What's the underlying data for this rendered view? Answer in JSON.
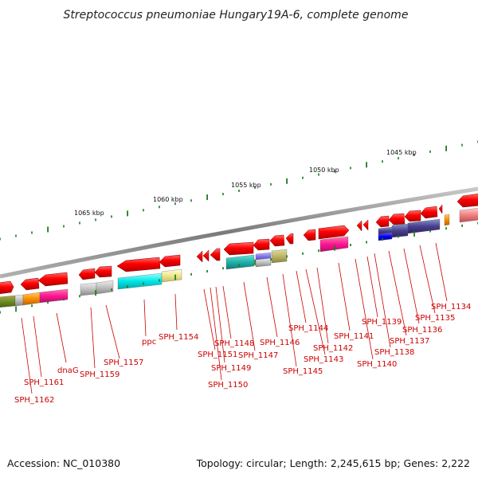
{
  "title": "Streptococcus pneumoniae Hungary19A-6, complete genome",
  "footer": {
    "accession": "Accession: NC_010380",
    "summary": "Topology: circular; Length: 2,245,615 bp; Genes: 2,222"
  },
  "colors": {
    "gene_red": "#ff0000",
    "backbone": "#8a8a8a",
    "tick_green": "#1e7a1e",
    "label_red": "#cc0000"
  },
  "scale_labels": [
    "1045 kbp",
    "1050 kbp",
    "1055 kbp",
    "1060 kbp",
    "1065 kbp"
  ],
  "gene_labels": [
    "SPH_1134",
    "SPH_1135",
    "SPH_1136",
    "SPH_1137",
    "SPH_1138",
    "SPH_1139",
    "SPH_1140",
    "SPH_1141",
    "SPH_1142",
    "SPH_1143",
    "SPH_1144",
    "SPH_1145",
    "SPH_1146",
    "SPH_1147",
    "SPH_1148",
    "SPH_1149",
    "SPH_1150",
    "SPH_1151",
    "SPH_1154",
    "ppc",
    "SPH_1157",
    "SPH_1159",
    "dnaG",
    "SPH_1161",
    "SPH_1162"
  ],
  "cog_colors": [
    "#ff0000",
    "#4b3f8f",
    "#0000ff",
    "#ff8c00",
    "#ff1493",
    "#00ced1",
    "#f0e68c",
    "#bdb76b",
    "#9370db",
    "#808000",
    "#c0c0c0",
    "#f08080",
    "#228b22"
  ]
}
